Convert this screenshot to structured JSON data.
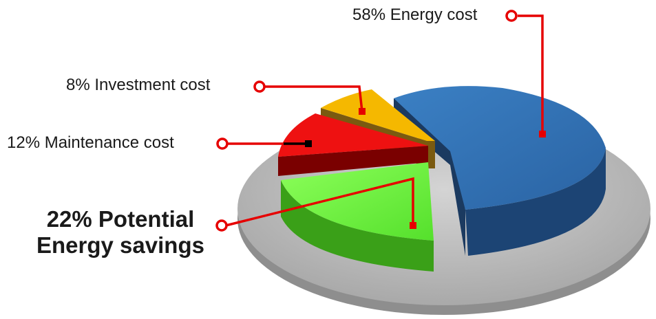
{
  "chart_data": {
    "type": "pie",
    "title": "",
    "labels": [
      "58% Energy cost",
      "8% Investment cost",
      "12% Maintenance cost",
      "22% Potential Energy savings"
    ],
    "label_lines": {
      "savings": [
        "22% Potential",
        "Energy savings"
      ]
    },
    "values": [
      58,
      8,
      12,
      22
    ],
    "colors": [
      "#2e6eb0",
      "#f5b800",
      "#ee1111",
      "#5ef033"
    ],
    "exploded": true,
    "style": "3d"
  }
}
